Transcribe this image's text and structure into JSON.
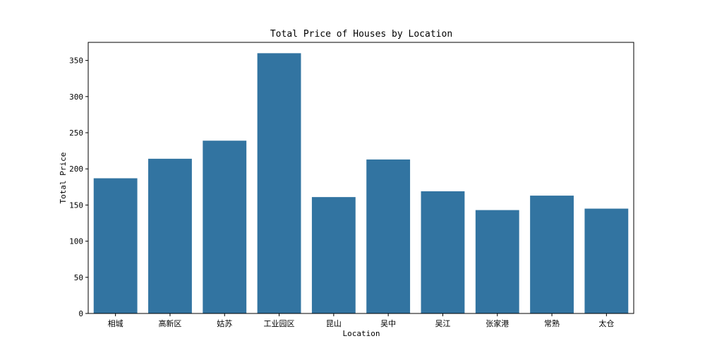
{
  "chart_data": {
    "type": "bar",
    "title": "Total Price of Houses by Location",
    "xlabel": "Location",
    "ylabel": "Total Price",
    "categories": [
      "相城",
      "高新区",
      "姑苏",
      "工业园区",
      "昆山",
      "吴中",
      "吴江",
      "张家港",
      "常熟",
      "太仓"
    ],
    "values": [
      187,
      214,
      239,
      360,
      161,
      213,
      169,
      143,
      163,
      145
    ],
    "ylim": [
      0,
      375
    ],
    "yticks": [
      0,
      50,
      100,
      150,
      200,
      250,
      300,
      350
    ],
    "color": "#3274a1",
    "grid": false
  }
}
